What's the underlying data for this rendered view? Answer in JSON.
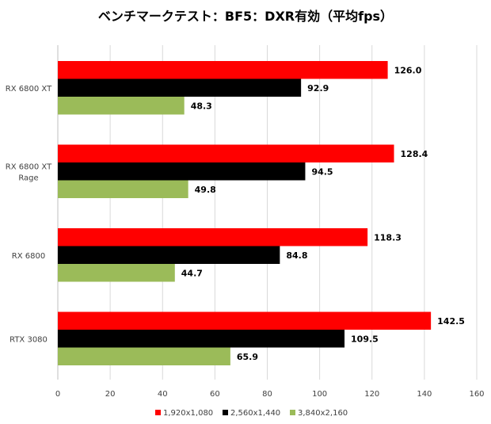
{
  "chart_data": {
    "type": "bar",
    "orientation": "horizontal",
    "title": "ベンチマークテスト：BF5：DXR有効（平均fps）",
    "categories": [
      [
        "RX 6800 XT"
      ],
      [
        "RX 6800 XT",
        "Rage"
      ],
      [
        "RX 6800"
      ],
      [
        "RTX 3080"
      ]
    ],
    "series": [
      {
        "name": "1,920x1,080",
        "color": "#ff0000",
        "values": [
          126.0,
          128.4,
          118.3,
          142.5
        ],
        "labels": [
          "126.0",
          "128.4",
          "118.3",
          "142.5"
        ]
      },
      {
        "name": "2,560x1,440",
        "color": "#000000",
        "values": [
          92.9,
          94.5,
          84.8,
          109.5
        ],
        "labels": [
          "92.9",
          "94.5",
          "84.8",
          "109.5"
        ]
      },
      {
        "name": "3,840x2,160",
        "color": "#9bbb59",
        "values": [
          48.3,
          49.8,
          44.7,
          65.9
        ],
        "labels": [
          "48.3",
          "49.8",
          "44.7",
          "65.9"
        ]
      }
    ],
    "xlim": [
      0,
      160
    ],
    "xticks": [
      0,
      20,
      40,
      60,
      80,
      100,
      120,
      140,
      160
    ],
    "xtick_labels": [
      "0",
      "20",
      "40",
      "60",
      "80",
      "100",
      "120",
      "140",
      "160"
    ],
    "grid": true,
    "legend_position": "bottom"
  }
}
